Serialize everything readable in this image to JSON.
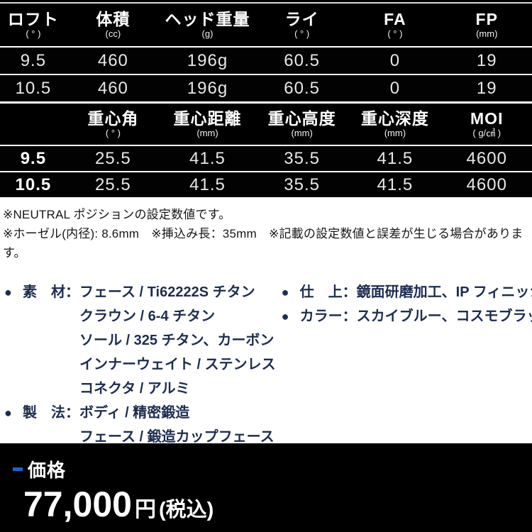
{
  "head_table": {
    "columns": [
      {
        "label": "ロフト",
        "unit": "( ° )"
      },
      {
        "label": "体積",
        "unit": "(cc)"
      },
      {
        "label": "ヘッド重量",
        "unit": "(g)"
      },
      {
        "label": "ライ",
        "unit": "( ° )"
      },
      {
        "label": "FA",
        "unit": "( ° )"
      },
      {
        "label": "FP",
        "unit": "(mm)"
      }
    ],
    "rows": [
      [
        "9.5",
        "460",
        "196g",
        "60.5",
        "0",
        "19"
      ],
      [
        "10.5",
        "460",
        "196g",
        "60.5",
        "0",
        "19"
      ]
    ]
  },
  "cg_table": {
    "columns": [
      {
        "label": "",
        "unit": ""
      },
      {
        "label": "重心角",
        "unit": "( ° )"
      },
      {
        "label": "重心距離",
        "unit": "(mm)"
      },
      {
        "label": "重心高度",
        "unit": "(mm)"
      },
      {
        "label": "重心深度",
        "unit": "(mm)"
      },
      {
        "label": "MOI",
        "unit": "( g/㎠ )"
      }
    ],
    "rows": [
      [
        "9.5",
        "25.5",
        "41.5",
        "35.5",
        "41.5",
        "4600"
      ],
      [
        "10.5",
        "25.5",
        "41.5",
        "35.5",
        "41.5",
        "4600"
      ]
    ]
  },
  "notes": {
    "line1": "※NEUTRAL ポジションの設定数値です。",
    "line2": "※ホーゼル(内径): 8.6mm　※挿込み長：35mm　※記載の設定数値と誤差が生じる場合があります。"
  },
  "specs": {
    "bullet": "●",
    "material": {
      "label": "素　材：",
      "lines": [
        "フェース / Ti62222S チタン",
        "クラウン / 6-4 チタン",
        "ソール / 325 チタン、カーボン",
        "インナーウェイト / ステンレス",
        "コネクタ / アルミ"
      ]
    },
    "method": {
      "label": "製　法：",
      "lines": [
        "ボディ / 精密鍛造",
        "フェース / 鍛造カップフェース"
      ]
    },
    "finish": {
      "label": "仕　上：",
      "value": "鏡面研磨加工、IP フィニッシュ"
    },
    "color": {
      "label": "カラー：",
      "value": "スカイブルー、コスモブラック"
    }
  },
  "price": {
    "label": "価格",
    "amount": "77,000",
    "currency": "円",
    "tax_note": "(税込)"
  },
  "colors": {
    "accent_blue": "#1d65c8",
    "navy_text": "#1d2d50",
    "table_bg": "#000000"
  }
}
